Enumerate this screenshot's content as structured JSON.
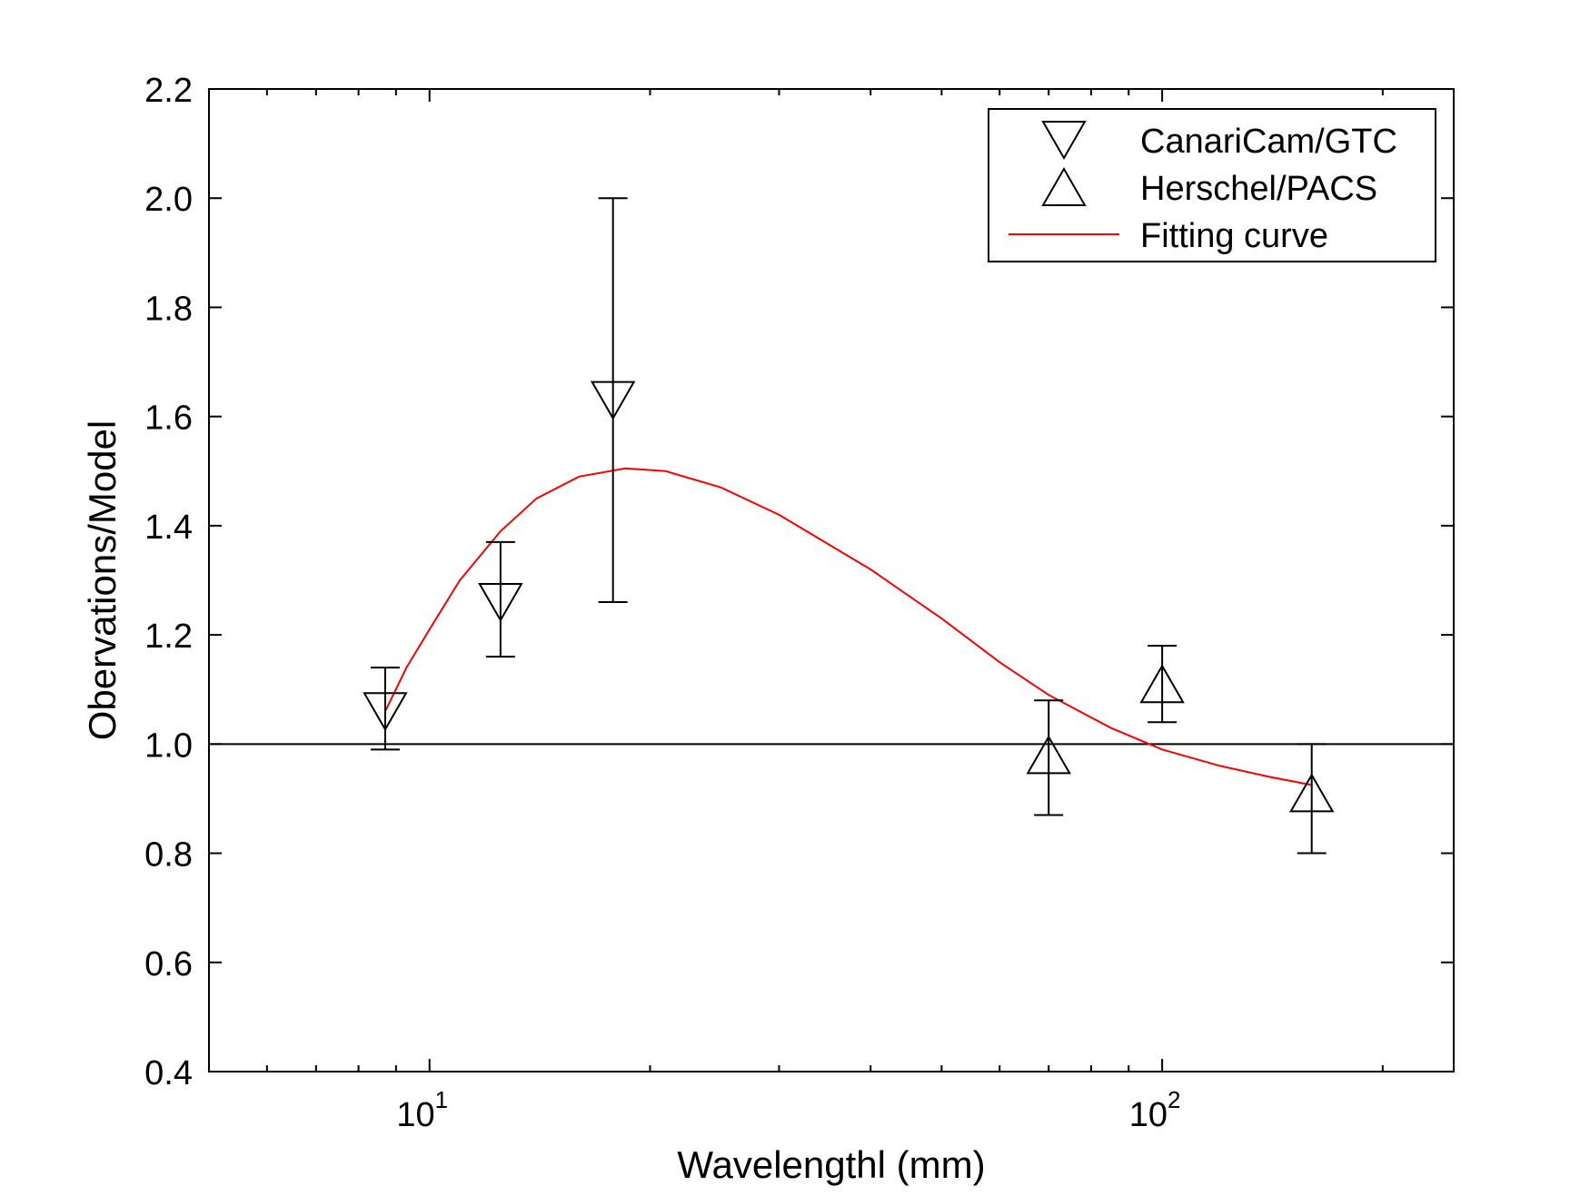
{
  "chart_data": {
    "type": "scatter",
    "title": "",
    "xlabel": "Wavelengthl (mm)",
    "ylabel": "Obervations/Model",
    "xscale": "log",
    "xlim": [
      5,
      250
    ],
    "ylim": [
      0.4,
      2.2
    ],
    "x_ticks": [
      {
        "value": 10,
        "base": "10",
        "exp": "1"
      },
      {
        "value": 100,
        "base": "10",
        "exp": "2"
      }
    ],
    "y_ticks": [
      "0.4",
      "0.6",
      "0.8",
      "1.0",
      "1.2",
      "1.4",
      "1.6",
      "1.8",
      "2.0",
      "2.2"
    ],
    "reference_line": 1.0,
    "grid": false,
    "legend_position": "top-right",
    "series": [
      {
        "name": "CanariCam/GTC",
        "marker": "triangle-down",
        "color": "#000000",
        "points": [
          {
            "x": 8.7,
            "y": 1.06,
            "err_low": 0.99,
            "err_high": 1.14
          },
          {
            "x": 12.5,
            "y": 1.26,
            "err_low": 1.16,
            "err_high": 1.37
          },
          {
            "x": 17.8,
            "y": 1.63,
            "err_low": 1.26,
            "err_high": 2.0
          }
        ]
      },
      {
        "name": "Herschel/PACS",
        "marker": "triangle-up",
        "color": "#000000",
        "points": [
          {
            "x": 70,
            "y": 0.98,
            "err_low": 0.87,
            "err_high": 1.08
          },
          {
            "x": 100,
            "y": 1.11,
            "err_low": 1.04,
            "err_high": 1.18
          },
          {
            "x": 160,
            "y": 0.91,
            "err_low": 0.8,
            "err_high": 1.0
          }
        ]
      },
      {
        "name": "Fitting curve",
        "marker": "line",
        "color": "#ff0000",
        "points": [
          {
            "x": 8.7,
            "y": 1.06
          },
          {
            "x": 9.3,
            "y": 1.14
          },
          {
            "x": 10,
            "y": 1.21
          },
          {
            "x": 11,
            "y": 1.3
          },
          {
            "x": 12.5,
            "y": 1.39
          },
          {
            "x": 14,
            "y": 1.45
          },
          {
            "x": 16,
            "y": 1.49
          },
          {
            "x": 18.5,
            "y": 1.505
          },
          {
            "x": 21,
            "y": 1.5
          },
          {
            "x": 25,
            "y": 1.47
          },
          {
            "x": 30,
            "y": 1.42
          },
          {
            "x": 40,
            "y": 1.32
          },
          {
            "x": 50,
            "y": 1.23
          },
          {
            "x": 60,
            "y": 1.15
          },
          {
            "x": 70,
            "y": 1.09
          },
          {
            "x": 85,
            "y": 1.03
          },
          {
            "x": 100,
            "y": 0.99
          },
          {
            "x": 120,
            "y": 0.96
          },
          {
            "x": 140,
            "y": 0.94
          },
          {
            "x": 160,
            "y": 0.925
          }
        ]
      }
    ]
  }
}
